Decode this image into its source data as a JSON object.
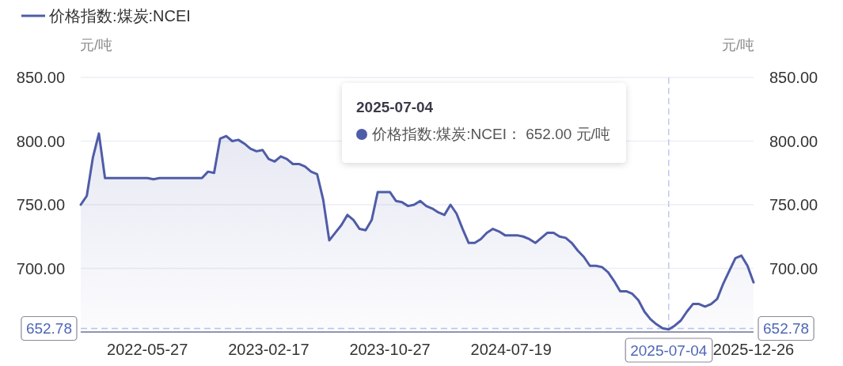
{
  "chart_data": {
    "type": "area",
    "categories": [
      null,
      null,
      null,
      null,
      null,
      null,
      null,
      null,
      null,
      null,
      null,
      "2022-05-27",
      null,
      null,
      null,
      null,
      null,
      null,
      null,
      null,
      null,
      null,
      null,
      null,
      null,
      null,
      null,
      null,
      null,
      null,
      null,
      "2023-02-17",
      null,
      null,
      null,
      null,
      null,
      null,
      null,
      null,
      null,
      null,
      null,
      null,
      null,
      null,
      null,
      null,
      null,
      null,
      null,
      "2023-10-27",
      null,
      null,
      null,
      null,
      null,
      null,
      null,
      null,
      null,
      null,
      null,
      null,
      null,
      null,
      null,
      null,
      null,
      null,
      null,
      "2024-07-19",
      null,
      null,
      null,
      null,
      null,
      null,
      null,
      null,
      null,
      null,
      null,
      null,
      null,
      null,
      null,
      null,
      null,
      null,
      null,
      null,
      null,
      null,
      null,
      null,
      null,
      "2025-07-04",
      null,
      null,
      null,
      null,
      null,
      null,
      null,
      null,
      null,
      null,
      null,
      null,
      null,
      "2025-12-26"
    ],
    "series": [
      {
        "name": "价格指数:煤炭:NCEI",
        "color": "#4f5ca7",
        "values": [
          750,
          757,
          787,
          806,
          771,
          771,
          771,
          771,
          771,
          771,
          771,
          771,
          770,
          771,
          771,
          771,
          771,
          771,
          771,
          771,
          771,
          776,
          775,
          802,
          804,
          800,
          801,
          798,
          794,
          792,
          793,
          786,
          784,
          788,
          786,
          782,
          782,
          780,
          776,
          774,
          754,
          722,
          728,
          734,
          742,
          738,
          731,
          730,
          738,
          760,
          760,
          760,
          753,
          752,
          749,
          750,
          753,
          749,
          747,
          744,
          742,
          750,
          743,
          731,
          720,
          720,
          723,
          728,
          731,
          729,
          726,
          726,
          726,
          725,
          723,
          720,
          724,
          728,
          728,
          725,
          724,
          720,
          714,
          709,
          702,
          702,
          701,
          697,
          690,
          682,
          682,
          680,
          675,
          666,
          660,
          656,
          653,
          652,
          655,
          659,
          666,
          672,
          672,
          670,
          672,
          676,
          688,
          698,
          708,
          710,
          702,
          689
        ]
      }
    ],
    "ylabel": "元/吨",
    "y2label": "元/吨",
    "ylim": [
      650,
      850
    ],
    "yticks": [
      {
        "value": 700,
        "label": "700.00"
      },
      {
        "value": 750,
        "label": "750.00"
      },
      {
        "value": 800,
        "label": "800.00"
      },
      {
        "value": 850,
        "label": "850.00"
      }
    ],
    "y2lim": [
      650,
      850
    ],
    "y2ticks": [
      {
        "value": 700,
        "label": "700.00"
      },
      {
        "value": 750,
        "label": "750.00"
      },
      {
        "value": 800,
        "label": "800.00"
      },
      {
        "value": 850,
        "label": "850.00"
      }
    ],
    "grid": "y",
    "legend": "top left",
    "ref_lines": [
      {
        "axis": "x",
        "value": "2025-07-04"
      },
      {
        "axis": "y",
        "value": 652.78,
        "label": "652.78"
      }
    ],
    "annotations": [
      "2025-07-04\n价格指数:煤炭:NCEI： 652.00 元/吨"
    ]
  }
}
